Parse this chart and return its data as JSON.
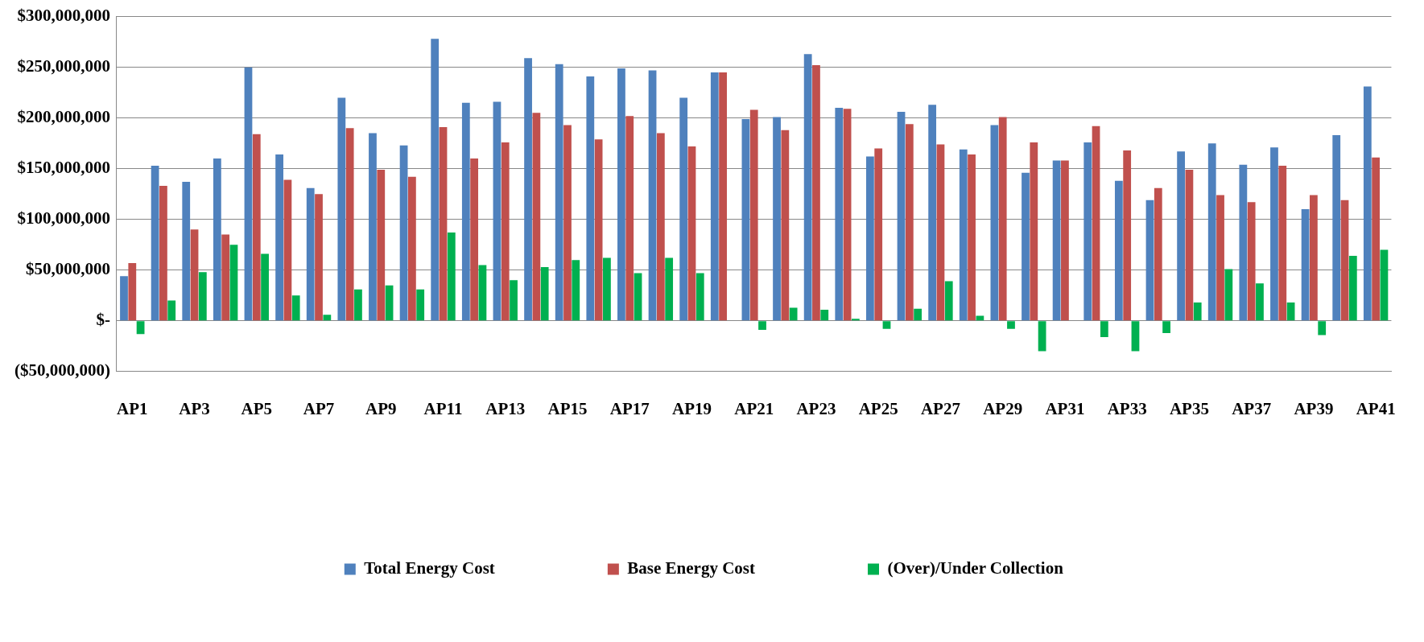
{
  "chart_data": {
    "type": "bar",
    "categories": [
      "AP1",
      null,
      "AP3",
      null,
      "AP5",
      null,
      "AP7",
      null,
      "AP9",
      null,
      "AP11",
      null,
      "AP13",
      null,
      "AP15",
      null,
      "AP17",
      null,
      "AP19",
      null,
      "AP21",
      null,
      "AP23",
      null,
      "AP25",
      null,
      "AP27",
      null,
      "AP29",
      null,
      "AP31",
      null,
      "AP33",
      null,
      "AP35",
      null,
      "AP37",
      null,
      "AP39",
      null,
      "AP41"
    ],
    "series": [
      {
        "name": "Total Energy Cost",
        "color": "#4f81bd",
        "values": [
          44000000,
          153000000,
          137000000,
          160000000,
          250000000,
          164000000,
          131000000,
          220000000,
          185000000,
          173000000,
          278000000,
          215000000,
          216000000,
          259000000,
          253000000,
          241000000,
          249000000,
          247000000,
          220000000,
          245000000,
          199000000,
          201000000,
          263000000,
          210000000,
          162000000,
          206000000,
          213000000,
          169000000,
          193000000,
          146000000,
          158000000,
          176000000,
          138000000,
          119000000,
          167000000,
          175000000,
          154000000,
          171000000,
          110000000,
          183000000,
          231000000
        ]
      },
      {
        "name": "Base Energy Cost",
        "color": "#c0504d",
        "values": [
          57000000,
          133000000,
          90000000,
          85000000,
          184000000,
          139000000,
          125000000,
          190000000,
          149000000,
          142000000,
          191000000,
          160000000,
          176000000,
          205000000,
          193000000,
          179000000,
          202000000,
          185000000,
          172000000,
          245000000,
          208000000,
          188000000,
          252000000,
          209000000,
          170000000,
          194000000,
          174000000,
          164000000,
          201000000,
          176000000,
          158000000,
          192000000,
          168000000,
          131000000,
          149000000,
          124000000,
          117000000,
          153000000,
          124000000,
          119000000,
          161000000
        ]
      },
      {
        "name": "(Over)/Under Collection",
        "color": "#00b050",
        "values": [
          -13000000,
          20000000,
          48000000,
          75000000,
          66000000,
          25000000,
          6000000,
          31000000,
          35000000,
          31000000,
          87000000,
          55000000,
          40000000,
          53000000,
          60000000,
          62000000,
          47000000,
          62000000,
          47000000,
          0,
          -9000000,
          13000000,
          11000000,
          2000000,
          -8000000,
          12000000,
          39000000,
          5000000,
          -8000000,
          -30000000,
          0,
          -16000000,
          -30000000,
          -12000000,
          18000000,
          51000000,
          37000000,
          18000000,
          -14000000,
          64000000,
          70000000
        ]
      }
    ],
    "ylim": [
      -50000000,
      300000000
    ],
    "yticks": [
      {
        "value": -50000000,
        "label": "($50,000,000)"
      },
      {
        "value": 0,
        "label": "$-"
      },
      {
        "value": 50000000,
        "label": "$50,000,000"
      },
      {
        "value": 100000000,
        "label": "$100,000,000"
      },
      {
        "value": 150000000,
        "label": "$150,000,000"
      },
      {
        "value": 200000000,
        "label": "$200,000,000"
      },
      {
        "value": 250000000,
        "label": "$250,000,000"
      },
      {
        "value": 300000000,
        "label": "$300,000,000"
      }
    ],
    "grid": "y",
    "legend": "bottom"
  }
}
